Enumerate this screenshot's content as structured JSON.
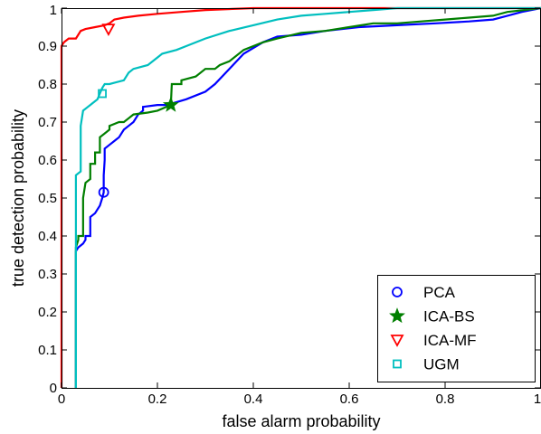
{
  "chart_data": {
    "type": "line",
    "title": "",
    "xlabel": "false alarm probability",
    "ylabel": "true detection probability",
    "xlim": [
      0,
      1
    ],
    "ylim": [
      0,
      1
    ],
    "x_ticks": [
      0,
      0.2,
      0.4,
      0.6,
      0.8,
      1
    ],
    "x_tick_labels": [
      "0",
      "0.2",
      "0.4",
      "0.6",
      "0.8",
      "1"
    ],
    "y_ticks": [
      0,
      0.1,
      0.2,
      0.3,
      0.4,
      0.5,
      0.6,
      0.7,
      0.8,
      0.9,
      1
    ],
    "y_tick_labels": [
      "0",
      "0.1",
      "0.2",
      "0.3",
      "0.4",
      "0.5",
      "0.6",
      "0.7",
      "0.8",
      "0.9",
      "1"
    ],
    "grid": false,
    "legend_position": "bottom-right",
    "series": [
      {
        "name": "PCA",
        "color": "#0000ff",
        "marker": "circle",
        "marker_point": [
          0.088,
          0.515
        ],
        "points": [
          [
            0.03,
            0
          ],
          [
            0.03,
            0.36
          ],
          [
            0.035,
            0.37
          ],
          [
            0.045,
            0.38
          ],
          [
            0.05,
            0.39
          ],
          [
            0.05,
            0.4
          ],
          [
            0.06,
            0.4
          ],
          [
            0.06,
            0.45
          ],
          [
            0.07,
            0.46
          ],
          [
            0.075,
            0.47
          ],
          [
            0.08,
            0.48
          ],
          [
            0.085,
            0.5
          ],
          [
            0.088,
            0.515
          ],
          [
            0.088,
            0.56
          ],
          [
            0.09,
            0.6
          ],
          [
            0.09,
            0.63
          ],
          [
            0.1,
            0.64
          ],
          [
            0.11,
            0.65
          ],
          [
            0.12,
            0.66
          ],
          [
            0.125,
            0.67
          ],
          [
            0.13,
            0.68
          ],
          [
            0.14,
            0.69
          ],
          [
            0.15,
            0.7
          ],
          [
            0.16,
            0.72
          ],
          [
            0.17,
            0.73
          ],
          [
            0.17,
            0.74
          ],
          [
            0.2,
            0.745
          ],
          [
            0.22,
            0.745
          ],
          [
            0.26,
            0.76
          ],
          [
            0.3,
            0.78
          ],
          [
            0.32,
            0.8
          ],
          [
            0.35,
            0.84
          ],
          [
            0.38,
            0.88
          ],
          [
            0.42,
            0.91
          ],
          [
            0.45,
            0.925
          ],
          [
            0.5,
            0.93
          ],
          [
            0.55,
            0.94
          ],
          [
            0.62,
            0.95
          ],
          [
            0.7,
            0.955
          ],
          [
            0.78,
            0.96
          ],
          [
            0.85,
            0.965
          ],
          [
            0.9,
            0.97
          ],
          [
            0.93,
            0.98
          ],
          [
            0.96,
            0.99
          ],
          [
            1.0,
            1.0
          ]
        ]
      },
      {
        "name": "ICA-BS",
        "color": "#007f00",
        "marker": "star",
        "marker_point": [
          0.228,
          0.745
        ],
        "points": [
          [
            0.03,
            0
          ],
          [
            0.03,
            0.37
          ],
          [
            0.035,
            0.39
          ],
          [
            0.035,
            0.4
          ],
          [
            0.045,
            0.4
          ],
          [
            0.045,
            0.5
          ],
          [
            0.05,
            0.54
          ],
          [
            0.06,
            0.55
          ],
          [
            0.06,
            0.59
          ],
          [
            0.07,
            0.59
          ],
          [
            0.07,
            0.62
          ],
          [
            0.08,
            0.62
          ],
          [
            0.08,
            0.66
          ],
          [
            0.09,
            0.67
          ],
          [
            0.1,
            0.68
          ],
          [
            0.1,
            0.69
          ],
          [
            0.12,
            0.7
          ],
          [
            0.13,
            0.7
          ],
          [
            0.14,
            0.71
          ],
          [
            0.15,
            0.72
          ],
          [
            0.18,
            0.725
          ],
          [
            0.2,
            0.73
          ],
          [
            0.228,
            0.745
          ],
          [
            0.23,
            0.8
          ],
          [
            0.25,
            0.8
          ],
          [
            0.25,
            0.81
          ],
          [
            0.28,
            0.82
          ],
          [
            0.3,
            0.84
          ],
          [
            0.32,
            0.84
          ],
          [
            0.33,
            0.85
          ],
          [
            0.35,
            0.86
          ],
          [
            0.38,
            0.89
          ],
          [
            0.4,
            0.9
          ],
          [
            0.42,
            0.91
          ],
          [
            0.45,
            0.92
          ],
          [
            0.5,
            0.935
          ],
          [
            0.55,
            0.94
          ],
          [
            0.6,
            0.95
          ],
          [
            0.65,
            0.96
          ],
          [
            0.7,
            0.96
          ],
          [
            0.75,
            0.965
          ],
          [
            0.8,
            0.97
          ],
          [
            0.85,
            0.975
          ],
          [
            0.9,
            0.98
          ],
          [
            0.93,
            0.99
          ],
          [
            1.0,
            1.0
          ]
        ]
      },
      {
        "name": "ICA-MF",
        "color": "#ff0000",
        "marker": "triangle-down",
        "marker_point": [
          0.098,
          0.945
        ],
        "points": [
          [
            0,
            0
          ],
          [
            0,
            0.9
          ],
          [
            0.005,
            0.91
          ],
          [
            0.015,
            0.92
          ],
          [
            0.03,
            0.92
          ],
          [
            0.04,
            0.94
          ],
          [
            0.05,
            0.945
          ],
          [
            0.07,
            0.95
          ],
          [
            0.09,
            0.955
          ],
          [
            0.1,
            0.96
          ],
          [
            0.11,
            0.97
          ],
          [
            0.13,
            0.975
          ],
          [
            0.16,
            0.98
          ],
          [
            0.2,
            0.985
          ],
          [
            0.25,
            0.99
          ],
          [
            0.3,
            0.995
          ],
          [
            0.4,
            1.0
          ],
          [
            1.0,
            1.0
          ]
        ]
      },
      {
        "name": "UGM",
        "color": "#00bfbf",
        "marker": "square",
        "marker_point": [
          0.085,
          0.775
        ],
        "points": [
          [
            0.03,
            0
          ],
          [
            0.03,
            0.56
          ],
          [
            0.04,
            0.57
          ],
          [
            0.04,
            0.69
          ],
          [
            0.045,
            0.73
          ],
          [
            0.055,
            0.74
          ],
          [
            0.06,
            0.745
          ],
          [
            0.065,
            0.75
          ],
          [
            0.075,
            0.76
          ],
          [
            0.08,
            0.775
          ],
          [
            0.085,
            0.79
          ],
          [
            0.09,
            0.8
          ],
          [
            0.1,
            0.8
          ],
          [
            0.13,
            0.81
          ],
          [
            0.14,
            0.83
          ],
          [
            0.15,
            0.84
          ],
          [
            0.18,
            0.85
          ],
          [
            0.2,
            0.87
          ],
          [
            0.21,
            0.88
          ],
          [
            0.24,
            0.89
          ],
          [
            0.26,
            0.9
          ],
          [
            0.3,
            0.92
          ],
          [
            0.35,
            0.94
          ],
          [
            0.4,
            0.955
          ],
          [
            0.45,
            0.97
          ],
          [
            0.5,
            0.98
          ],
          [
            0.55,
            0.985
          ],
          [
            0.6,
            0.99
          ],
          [
            0.65,
            0.995
          ],
          [
            0.7,
            1.0
          ],
          [
            1.0,
            1.0
          ]
        ]
      }
    ]
  }
}
